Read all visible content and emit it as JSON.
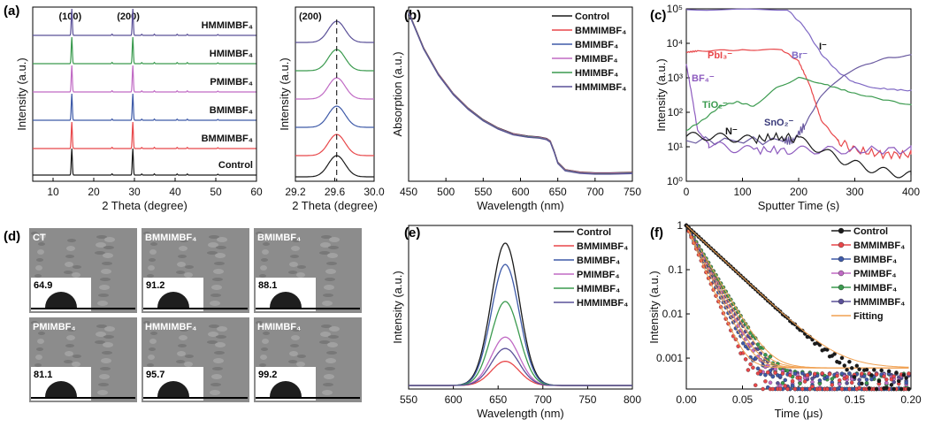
{
  "panels": {
    "a": {
      "letter": "(a)",
      "ylabel": "Intensity (a.u.)",
      "xlabel": "2 Theta (degree)"
    },
    "a_zoom": {
      "xlabel": "2 Theta (degree)",
      "peak_label": "(200)"
    },
    "b": {
      "letter": "(b)"
    },
    "c": {
      "letter": "(c)"
    },
    "d": {
      "letter": "(d)"
    },
    "e": {
      "letter": "(e)"
    },
    "f": {
      "letter": "(f)"
    }
  },
  "colors": {
    "Control": "#1a1a1a",
    "BMMIMBF4": "#e8474a",
    "BMIMBF4": "#3e5aa8",
    "PMIMBF4": "#c06ac4",
    "HMIMBF4": "#3a9a4e",
    "HMMIMBF4": "#5a5098"
  },
  "chart_data": [
    {
      "id": "a",
      "type": "line",
      "xlabel": "2 Theta (degree)",
      "ylabel": "Intensity (a.u.)",
      "xlim": [
        5,
        60
      ],
      "xticks": [
        10,
        20,
        30,
        40,
        50,
        60
      ],
      "peak_labels": [
        {
          "x": 14.2,
          "text": "(100)"
        },
        {
          "x": 28.5,
          "text": "(200)"
        }
      ],
      "peaks": [
        14.6,
        29.6
      ],
      "series": [
        {
          "name": "HMMIMBF₄",
          "key": "HMMIMBF4"
        },
        {
          "name": "HMIMBF₄",
          "key": "HMIMBF4"
        },
        {
          "name": "PMIMBF₄",
          "key": "PMIMBF4"
        },
        {
          "name": "BMIMBF₄",
          "key": "BMIMBF4"
        },
        {
          "name": "BMMIMBF₄",
          "key": "BMMIMBF4"
        },
        {
          "name": "Control",
          "key": "Control"
        }
      ]
    },
    {
      "id": "a_zoom",
      "type": "line",
      "xlabel": "2 Theta (degree)",
      "xlim": [
        29.2,
        30.0
      ],
      "xticks": [
        "29.2",
        "29.6",
        "30.0"
      ],
      "annotation": "(200)",
      "peak_center": 29.62,
      "series_keys": [
        "HMMIMBF4",
        "HMIMBF4",
        "PMIMBF4",
        "BMIMBF4",
        "BMMIMBF4",
        "Control"
      ]
    },
    {
      "id": "b",
      "type": "line",
      "xlabel": "Wavelength (nm)",
      "ylabel": "Absorption (a.u.)",
      "xlim": [
        450,
        750
      ],
      "xticks": [
        450,
        500,
        550,
        600,
        650,
        700,
        750
      ],
      "legend": [
        "Control",
        "BMMIMBF₄",
        "BMIMBF₄",
        "PMIMBF₄",
        "HMIMBF₄",
        "HMMIMBF₄"
      ],
      "legend_keys": [
        "Control",
        "BMMIMBF4",
        "BMIMBF4",
        "PMIMBF4",
        "HMIMBF4",
        "HMMIMBF4"
      ],
      "x": [
        450,
        470,
        490,
        510,
        530,
        550,
        570,
        590,
        610,
        625,
        635,
        640,
        645,
        650,
        660,
        680,
        700,
        720,
        750
      ],
      "values": [
        1.0,
        0.78,
        0.62,
        0.5,
        0.41,
        0.34,
        0.29,
        0.255,
        0.24,
        0.235,
        0.225,
        0.21,
        0.15,
        0.08,
        0.035,
        0.02,
        0.015,
        0.015,
        0.018
      ]
    },
    {
      "id": "c",
      "type": "line",
      "xlabel": "Sputter Time (s)",
      "ylabel": "Intensity (a.u.)",
      "yscale": "log",
      "ylim": [
        1,
        100000
      ],
      "yticks": [
        "10⁰",
        "10¹",
        "10²",
        "10³",
        "10⁴",
        "10⁵"
      ],
      "xlim": [
        0,
        400
      ],
      "xticks": [
        0,
        100,
        200,
        300,
        400
      ],
      "annotations": [
        "PbI₃⁻",
        "Br⁻",
        "I⁻",
        "BF₄⁻",
        "TiO₂⁻",
        "SnO₂⁻",
        "N⁻"
      ],
      "series": [
        {
          "name": "Br⁻",
          "color": "#7f68c4",
          "x": [
            0,
            180,
            210,
            240,
            270,
            300,
            340,
            400
          ],
          "y": [
            95000,
            95000,
            30000,
            5000,
            1500,
            700,
            500,
            420
          ]
        },
        {
          "name": "I⁻",
          "color": "#6a5aa0",
          "x": [
            0,
            170,
            190,
            210,
            240,
            280,
            320,
            360,
            400
          ],
          "y": [
            15,
            15,
            15,
            40,
            300,
            1200,
            2500,
            3800,
            4500
          ]
        },
        {
          "name": "PbI₃⁻",
          "color": "#e8474a",
          "x": [
            0,
            20,
            100,
            170,
            200,
            220,
            240,
            270,
            300,
            350,
            400
          ],
          "y": [
            5500,
            6000,
            6500,
            6500,
            3000,
            600,
            60,
            15,
            8,
            6,
            6
          ]
        },
        {
          "name": "BF₄⁻",
          "color": "#8e5cbf",
          "x": [
            0,
            10,
            20,
            40,
            80,
            120,
            180,
            220,
            300,
            400
          ],
          "y": [
            2500,
            300,
            30,
            12,
            9,
            8,
            8,
            8,
            8,
            8
          ]
        },
        {
          "name": "TiO₂⁻",
          "color": "#3a9a4e",
          "x": [
            0,
            30,
            60,
            90,
            120,
            160,
            200,
            240,
            300,
            400
          ],
          "y": [
            30,
            60,
            150,
            200,
            150,
            500,
            1000,
            700,
            350,
            160
          ]
        },
        {
          "name": "N⁻",
          "color": "#1a1a1a",
          "x": [
            0,
            40,
            80,
            120,
            170,
            200,
            240,
            280,
            320,
            360,
            400
          ],
          "y": [
            20,
            20,
            18,
            16,
            20,
            16,
            8,
            4,
            2.5,
            1.8,
            1.5
          ]
        }
      ]
    },
    {
      "id": "d",
      "type": "table",
      "images": [
        {
          "label": "CT",
          "angle": "64.9"
        },
        {
          "label": "BMMIMBF₄",
          "angle": "91.2"
        },
        {
          "label": "BMIMBF₄",
          "angle": "88.1"
        },
        {
          "label": "PMIMBF₄",
          "angle": "81.1"
        },
        {
          "label": "HMMIMBF₄",
          "angle": "95.7"
        },
        {
          "label": "HMIMBF₄",
          "angle": "99.2"
        }
      ]
    },
    {
      "id": "e",
      "type": "line",
      "xlabel": "Wavelength (nm)",
      "ylabel": "Intensity (a.u.)",
      "xlim": [
        550,
        800
      ],
      "xticks": [
        550,
        600,
        650,
        700,
        750,
        800
      ],
      "peak_nm": 658,
      "legend": [
        "Control",
        "BMMIMBF₄",
        "BMIMBF₄",
        "PMIMBF₄",
        "HMIMBF₄",
        "HMMIMBF₄"
      ],
      "series": [
        {
          "name": "Control",
          "key": "Control",
          "peak": 1.0
        },
        {
          "name": "BMMIMBF₄",
          "key": "BMMIMBF4",
          "peak": 0.17
        },
        {
          "name": "BMIMBF₄",
          "key": "BMIMBF4",
          "peak": 0.85
        },
        {
          "name": "PMIMBF₄",
          "key": "PMIMBF4",
          "peak": 0.34
        },
        {
          "name": "HMIMBF₄",
          "key": "HMIMBF4",
          "peak": 0.59
        },
        {
          "name": "HMMIMBF₄",
          "key": "HMMIMBF4",
          "peak": 0.26
        }
      ]
    },
    {
      "id": "f",
      "type": "scatter",
      "xlabel": "Time (μs)",
      "ylabel": "Intensity (a.u.)",
      "yscale": "log",
      "xlim": [
        0,
        0.2
      ],
      "xticks": [
        "0.00",
        "0.05",
        "0.10",
        "0.15",
        "0.20"
      ],
      "yticks": [
        "0.001",
        "0.01",
        "0.1",
        "1"
      ],
      "legend": [
        "Control",
        "BMMIMBF₄",
        "BMIMBF₄",
        "PMIMBF₄",
        "HMIMBF₄",
        "HMMIMBF₄",
        "Fitting"
      ],
      "fitting_color": "#f0a050",
      "series": [
        {
          "name": "Control",
          "key": "Control",
          "tau": 0.0185
        },
        {
          "name": "BMMIMBF₄",
          "key": "BMMIMBF4",
          "tau": 0.0072
        },
        {
          "name": "BMIMBF₄",
          "key": "BMIMBF4",
          "tau": 0.0082
        },
        {
          "name": "PMIMBF₄",
          "key": "PMIMBF4",
          "tau": 0.0088
        },
        {
          "name": "HMIMBF₄",
          "key": "HMIMBF4",
          "tau": 0.0102
        },
        {
          "name": "HMMIMBF₄",
          "key": "HMMIMBF4",
          "tau": 0.0095
        }
      ]
    }
  ]
}
